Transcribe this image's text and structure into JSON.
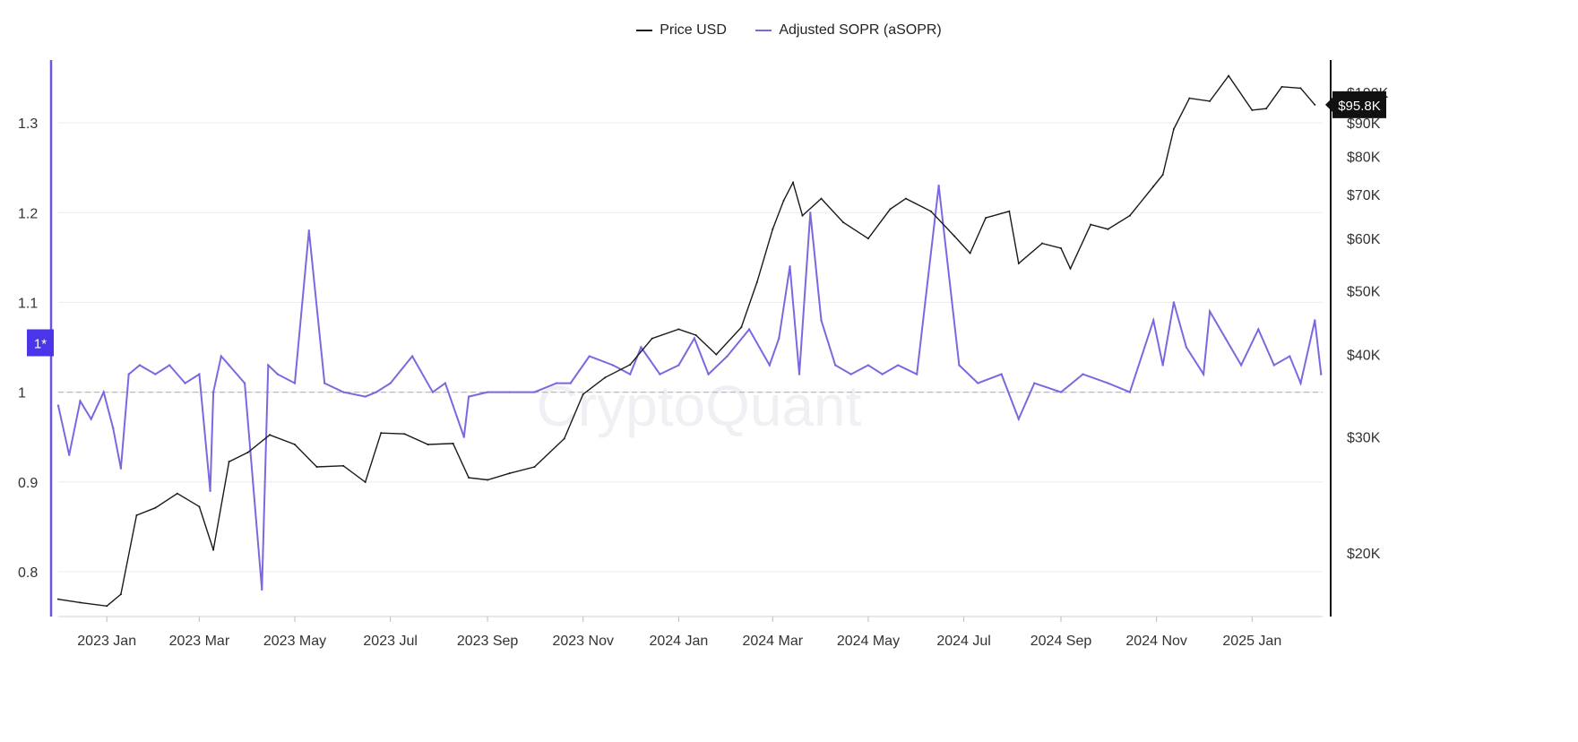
{
  "colors": {
    "price": "#1a1a1a",
    "asopr": "#7b68e0",
    "left_axis": "#6a55e0",
    "badge_bg": "#4a35e8",
    "price_badge_bg": "#111111",
    "grid": "#ececec"
  },
  "watermark": "CryptoQuant",
  "chart_data": {
    "type": "line",
    "x_ticks": [
      "2023 Jan",
      "2023 Mar",
      "2023 May",
      "2023 Jul",
      "2023 Sep",
      "2023 Nov",
      "2024 Jan",
      "2024 Mar",
      "2024 May",
      "2024 Jul",
      "2024 Sep",
      "2024 Nov",
      "2025 Jan"
    ],
    "left_axis": {
      "ticks": [
        "0.8",
        "0.9",
        "1",
        "1.1",
        "1.2",
        "1.3"
      ],
      "ylim": [
        0.75,
        1.37
      ],
      "reference_line": 1,
      "badge": "1*"
    },
    "right_axis": {
      "scale": "log",
      "ticks": [
        "$20K",
        "$30K",
        "$40K",
        "$50K",
        "$60K",
        "$70K",
        "$80K",
        "$90K",
        "$100K"
      ],
      "ylim": [
        16000,
        112000
      ],
      "current_badge": "$95.8K"
    },
    "legend_position": "top-center",
    "series": [
      {
        "name": "Price USD",
        "axis": "right",
        "x": [
          "2022-12-01",
          "2022-12-15",
          "2023-01-01",
          "2023-01-10",
          "2023-01-20",
          "2023-02-01",
          "2023-02-15",
          "2023-03-01",
          "2023-03-10",
          "2023-03-20",
          "2023-04-01",
          "2023-04-15",
          "2023-05-01",
          "2023-05-15",
          "2023-06-01",
          "2023-06-15",
          "2023-06-25",
          "2023-07-10",
          "2023-07-25",
          "2023-08-10",
          "2023-08-20",
          "2023-09-01",
          "2023-09-15",
          "2023-10-01",
          "2023-10-20",
          "2023-11-01",
          "2023-11-15",
          "2023-12-01",
          "2023-12-15",
          "2024-01-01",
          "2024-01-12",
          "2024-01-25",
          "2024-02-10",
          "2024-02-20",
          "2024-03-01",
          "2024-03-08",
          "2024-03-14",
          "2024-03-20",
          "2024-04-01",
          "2024-04-15",
          "2024-05-01",
          "2024-05-15",
          "2024-05-25",
          "2024-06-10",
          "2024-06-25",
          "2024-07-05",
          "2024-07-15",
          "2024-07-30",
          "2024-08-05",
          "2024-08-20",
          "2024-09-01",
          "2024-09-07",
          "2024-09-20",
          "2024-10-01",
          "2024-10-15",
          "2024-10-30",
          "2024-11-05",
          "2024-11-12",
          "2024-11-22",
          "2024-12-05",
          "2024-12-17",
          "2025-01-01",
          "2025-01-10",
          "2025-01-20",
          "2025-02-01",
          "2025-02-10"
        ],
        "values": [
          17000,
          16800,
          16600,
          17300,
          22800,
          23400,
          24600,
          23500,
          20200,
          27500,
          28400,
          30200,
          29200,
          27000,
          27100,
          25600,
          30400,
          30300,
          29200,
          29300,
          26000,
          25800,
          26400,
          27000,
          29800,
          34800,
          36900,
          38600,
          42300,
          43700,
          42800,
          40000,
          44000,
          51500,
          62000,
          68500,
          73000,
          65000,
          69000,
          63500,
          60000,
          66500,
          69000,
          66000,
          60500,
          57000,
          64500,
          66000,
          55000,
          59000,
          58000,
          54000,
          63000,
          62000,
          65000,
          72000,
          75000,
          88000,
          98000,
          97000,
          106000,
          94000,
          94500,
          102000,
          101500,
          95800
        ]
      },
      {
        "name": "Adjusted SOPR (aSOPR)",
        "axis": "left",
        "x": [
          "2022-12-01",
          "2022-12-08",
          "2022-12-15",
          "2022-12-22",
          "2022-12-30",
          "2023-01-05",
          "2023-01-10",
          "2023-01-15",
          "2023-01-22",
          "2023-02-01",
          "2023-02-10",
          "2023-02-20",
          "2023-03-01",
          "2023-03-08",
          "2023-03-10",
          "2023-03-15",
          "2023-03-20",
          "2023-03-30",
          "2023-04-10",
          "2023-04-14",
          "2023-04-20",
          "2023-05-01",
          "2023-05-10",
          "2023-05-20",
          "2023-06-01",
          "2023-06-15",
          "2023-06-22",
          "2023-07-01",
          "2023-07-15",
          "2023-07-28",
          "2023-08-05",
          "2023-08-17",
          "2023-08-20",
          "2023-09-01",
          "2023-09-15",
          "2023-10-01",
          "2023-10-15",
          "2023-10-24",
          "2023-11-05",
          "2023-11-20",
          "2023-12-01",
          "2023-12-08",
          "2023-12-20",
          "2024-01-01",
          "2024-01-11",
          "2024-01-20",
          "2024-02-01",
          "2024-02-15",
          "2024-02-28",
          "2024-03-05",
          "2024-03-12",
          "2024-03-18",
          "2024-03-25",
          "2024-04-01",
          "2024-04-10",
          "2024-04-20",
          "2024-05-01",
          "2024-05-10",
          "2024-05-20",
          "2024-06-01",
          "2024-06-15",
          "2024-06-28",
          "2024-07-10",
          "2024-07-25",
          "2024-08-05",
          "2024-08-15",
          "2024-09-01",
          "2024-09-15",
          "2024-10-01",
          "2024-10-15",
          "2024-10-30",
          "2024-11-05",
          "2024-11-12",
          "2024-11-20",
          "2024-12-01",
          "2024-12-05",
          "2024-12-15",
          "2024-12-25",
          "2025-01-05",
          "2025-01-15",
          "2025-01-25",
          "2025-02-01",
          "2025-02-10",
          "2025-02-14"
        ],
        "values": [
          0.985,
          0.93,
          0.99,
          0.97,
          1.0,
          0.96,
          0.915,
          1.02,
          1.03,
          1.02,
          1.03,
          1.01,
          1.02,
          0.89,
          1.0,
          1.04,
          1.03,
          1.01,
          0.78,
          1.03,
          1.02,
          1.01,
          1.18,
          1.01,
          1.0,
          0.995,
          1.0,
          1.01,
          1.04,
          1.0,
          1.01,
          0.95,
          0.995,
          1.0,
          1.0,
          1.0,
          1.01,
          1.01,
          1.04,
          1.03,
          1.02,
          1.05,
          1.02,
          1.03,
          1.06,
          1.02,
          1.04,
          1.07,
          1.03,
          1.06,
          1.14,
          1.02,
          1.2,
          1.08,
          1.03,
          1.02,
          1.03,
          1.02,
          1.03,
          1.02,
          1.23,
          1.03,
          1.01,
          1.02,
          0.97,
          1.01,
          1.0,
          1.02,
          1.01,
          1.0,
          1.08,
          1.03,
          1.1,
          1.05,
          1.02,
          1.09,
          1.06,
          1.03,
          1.07,
          1.03,
          1.04,
          1.01,
          1.08,
          1.02
        ]
      }
    ]
  }
}
